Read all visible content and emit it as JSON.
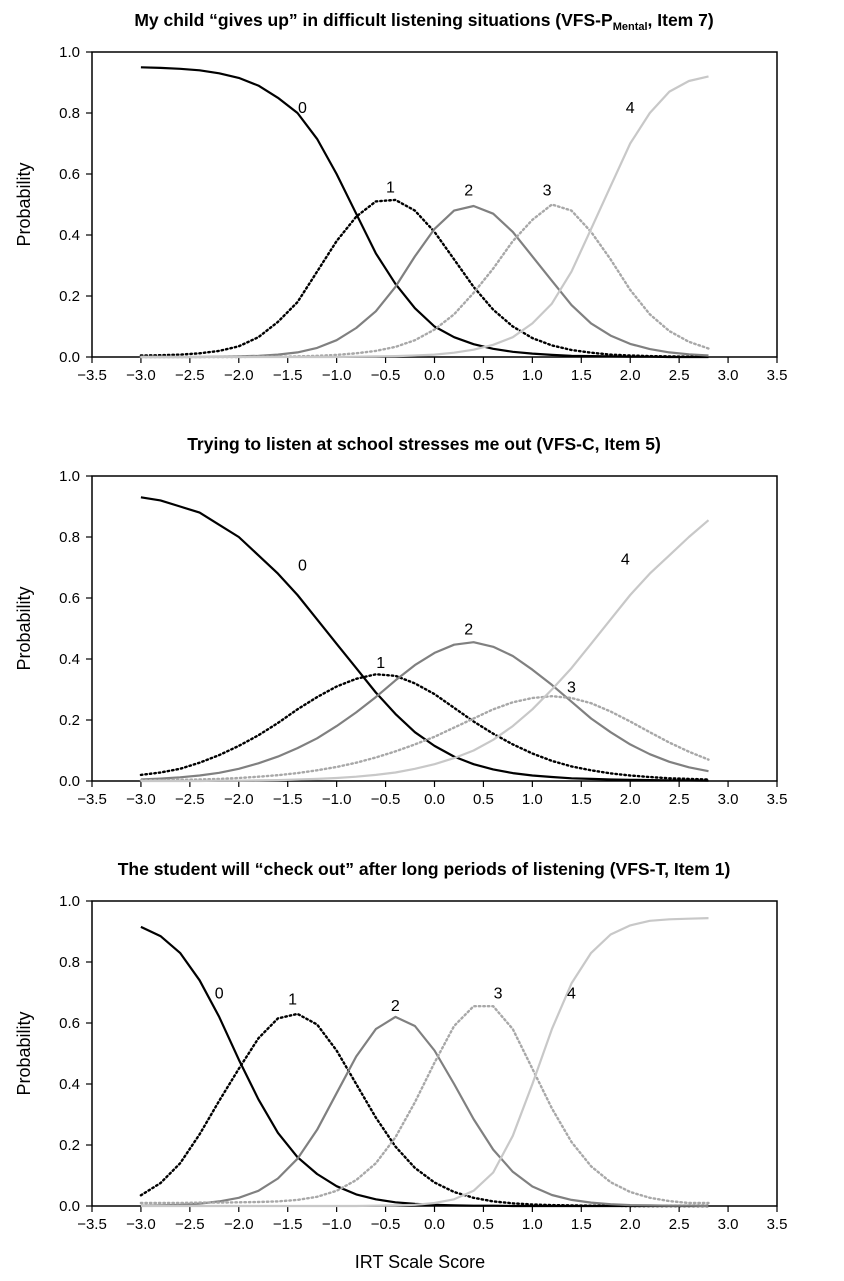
{
  "figure": {
    "xlabel": "IRT Scale Score"
  },
  "chart_data": [
    {
      "type": "line",
      "title_main": "My child “gives up” in difficult listening situations (VFS-P",
      "title_sub": "Mental",
      "title_tail": ", Item 7)",
      "ylabel": "Probability",
      "xlim": [
        -3.5,
        3.5
      ],
      "ylim": [
        0,
        1
      ],
      "x_ticks": [
        "−3.5",
        "−3.0",
        "−2.5",
        "−2.0",
        "−1.5",
        "−1.0",
        "−0.5",
        "0.0",
        "0.5",
        "1.0",
        "1.5",
        "2.0",
        "2.5",
        "3.0",
        "3.5"
      ],
      "y_ticks": [
        "0.0",
        "0.2",
        "0.4",
        "0.6",
        "0.8",
        "1.0"
      ],
      "x": [
        -3.0,
        -2.8,
        -2.6,
        -2.4,
        -2.2,
        -2.0,
        -1.8,
        -1.6,
        -1.4,
        -1.2,
        -1.0,
        -0.8,
        -0.6,
        -0.4,
        -0.2,
        0.0,
        0.2,
        0.4,
        0.6,
        0.8,
        1.0,
        1.2,
        1.4,
        1.6,
        1.8,
        2.0,
        2.2,
        2.4,
        2.6,
        2.8
      ],
      "series": [
        {
          "name": "0",
          "color": "#000000",
          "dash": "solid",
          "label_pos": [
            -1.35,
            0.8
          ],
          "values": [
            0.95,
            0.948,
            0.945,
            0.94,
            0.93,
            0.915,
            0.89,
            0.85,
            0.8,
            0.715,
            0.6,
            0.47,
            0.34,
            0.24,
            0.16,
            0.1,
            0.065,
            0.042,
            0.027,
            0.017,
            0.011,
            0.007,
            0.004,
            0.003,
            0.002,
            0.001,
            0.001,
            0.0,
            0.0,
            0.0
          ]
        },
        {
          "name": "1",
          "color": "#000000",
          "dash": "dot",
          "label_pos": [
            -0.45,
            0.54
          ],
          "values": [
            0.005,
            0.006,
            0.008,
            0.012,
            0.02,
            0.035,
            0.065,
            0.115,
            0.18,
            0.28,
            0.38,
            0.46,
            0.51,
            0.515,
            0.48,
            0.41,
            0.32,
            0.23,
            0.155,
            0.1,
            0.062,
            0.038,
            0.023,
            0.014,
            0.008,
            0.005,
            0.003,
            0.002,
            0.001,
            0.001
          ]
        },
        {
          "name": "2",
          "color": "#808080",
          "dash": "solid",
          "label_pos": [
            0.35,
            0.53
          ],
          "values": [
            0.0,
            0.0,
            0.0,
            0.0,
            0.001,
            0.002,
            0.004,
            0.008,
            0.015,
            0.03,
            0.055,
            0.095,
            0.15,
            0.23,
            0.33,
            0.42,
            0.48,
            0.495,
            0.47,
            0.41,
            0.33,
            0.25,
            0.17,
            0.11,
            0.07,
            0.043,
            0.026,
            0.015,
            0.009,
            0.005
          ]
        },
        {
          "name": "3",
          "color": "#a8a8a8",
          "dash": "dot",
          "label_pos": [
            1.15,
            0.53
          ],
          "values": [
            0.0,
            0.0,
            0.0,
            0.0,
            0.0,
            0.0,
            0.001,
            0.001,
            0.002,
            0.004,
            0.007,
            0.012,
            0.02,
            0.033,
            0.055,
            0.09,
            0.14,
            0.21,
            0.29,
            0.38,
            0.45,
            0.5,
            0.48,
            0.41,
            0.32,
            0.22,
            0.14,
            0.085,
            0.05,
            0.028
          ]
        },
        {
          "name": "4",
          "color": "#c8c8c8",
          "dash": "solid",
          "label_pos": [
            2.0,
            0.8
          ],
          "values": [
            0.0,
            0.0,
            0.0,
            0.0,
            0.0,
            0.0,
            0.0,
            0.0,
            0.0,
            0.0,
            0.0,
            0.001,
            0.002,
            0.003,
            0.005,
            0.008,
            0.014,
            0.024,
            0.04,
            0.065,
            0.11,
            0.175,
            0.28,
            0.42,
            0.56,
            0.7,
            0.8,
            0.87,
            0.905,
            0.92
          ]
        }
      ]
    },
    {
      "type": "line",
      "title_main": "Trying to listen at school stresses me out (VFS-C, Item 5)",
      "title_sub": "",
      "title_tail": "",
      "ylabel": "Probability",
      "xlim": [
        -3.5,
        3.5
      ],
      "ylim": [
        0,
        1
      ],
      "x_ticks": [
        "−3.5",
        "−3.0",
        "−2.5",
        "−2.0",
        "−1.5",
        "−1.0",
        "−0.5",
        "0.0",
        "0.5",
        "1.0",
        "1.5",
        "2.0",
        "2.5",
        "3.0",
        "3.5"
      ],
      "y_ticks": [
        "0.0",
        "0.2",
        "0.4",
        "0.6",
        "0.8",
        "1.0"
      ],
      "x": [
        -3.0,
        -2.8,
        -2.6,
        -2.4,
        -2.2,
        -2.0,
        -1.8,
        -1.6,
        -1.4,
        -1.2,
        -1.0,
        -0.8,
        -0.6,
        -0.4,
        -0.2,
        0.0,
        0.2,
        0.4,
        0.6,
        0.8,
        1.0,
        1.2,
        1.4,
        1.6,
        1.8,
        2.0,
        2.2,
        2.4,
        2.6,
        2.8
      ],
      "series": [
        {
          "name": "0",
          "color": "#000000",
          "dash": "solid",
          "label_pos": [
            -1.35,
            0.69
          ],
          "values": [
            0.93,
            0.92,
            0.9,
            0.88,
            0.84,
            0.8,
            0.74,
            0.68,
            0.61,
            0.53,
            0.45,
            0.37,
            0.29,
            0.22,
            0.16,
            0.115,
            0.08,
            0.055,
            0.038,
            0.026,
            0.018,
            0.013,
            0.009,
            0.007,
            0.005,
            0.004,
            0.003,
            0.002,
            0.002,
            0.001
          ]
        },
        {
          "name": "1",
          "color": "#000000",
          "dash": "dot",
          "label_pos": [
            -0.55,
            0.37
          ],
          "values": [
            0.02,
            0.028,
            0.04,
            0.06,
            0.085,
            0.115,
            0.15,
            0.19,
            0.235,
            0.275,
            0.31,
            0.335,
            0.35,
            0.345,
            0.32,
            0.285,
            0.24,
            0.195,
            0.155,
            0.12,
            0.09,
            0.066,
            0.048,
            0.035,
            0.025,
            0.018,
            0.013,
            0.009,
            0.007,
            0.005
          ]
        },
        {
          "name": "2",
          "color": "#808080",
          "dash": "solid",
          "label_pos": [
            0.35,
            0.48
          ],
          "values": [
            0.005,
            0.008,
            0.012,
            0.018,
            0.027,
            0.04,
            0.058,
            0.08,
            0.108,
            0.14,
            0.18,
            0.225,
            0.275,
            0.33,
            0.38,
            0.42,
            0.447,
            0.455,
            0.44,
            0.41,
            0.365,
            0.315,
            0.26,
            0.205,
            0.16,
            0.12,
            0.088,
            0.063,
            0.045,
            0.032
          ]
        },
        {
          "name": "3",
          "color": "#a8a8a8",
          "dash": "dot",
          "label_pos": [
            1.4,
            0.29
          ],
          "values": [
            0.002,
            0.003,
            0.004,
            0.005,
            0.007,
            0.01,
            0.014,
            0.019,
            0.026,
            0.035,
            0.046,
            0.06,
            0.077,
            0.097,
            0.12,
            0.145,
            0.175,
            0.205,
            0.235,
            0.258,
            0.272,
            0.278,
            0.272,
            0.255,
            0.228,
            0.195,
            0.16,
            0.126,
            0.096,
            0.07
          ]
        },
        {
          "name": "4",
          "color": "#c8c8c8",
          "dash": "solid",
          "label_pos": [
            1.95,
            0.71
          ],
          "values": [
            0.0,
            0.0,
            0.0,
            0.0,
            0.001,
            0.001,
            0.002,
            0.003,
            0.005,
            0.007,
            0.01,
            0.014,
            0.02,
            0.028,
            0.04,
            0.055,
            0.075,
            0.1,
            0.135,
            0.18,
            0.235,
            0.3,
            0.37,
            0.45,
            0.53,
            0.61,
            0.68,
            0.74,
            0.8,
            0.855
          ]
        }
      ]
    },
    {
      "type": "line",
      "title_main": "The student will “check out” after long periods of listening (VFS-T, Item 1)",
      "title_sub": "",
      "title_tail": "",
      "ylabel": "Probability",
      "xlim": [
        -3.5,
        3.5
      ],
      "ylim": [
        0,
        1
      ],
      "x_ticks": [
        "−3.5",
        "−3.0",
        "−2.5",
        "−2.0",
        "−1.5",
        "−1.0",
        "−0.5",
        "0.0",
        "0.5",
        "1.0",
        "1.5",
        "2.0",
        "2.5",
        "3.0",
        "3.5"
      ],
      "y_ticks": [
        "0.0",
        "0.2",
        "0.4",
        "0.6",
        "0.8",
        "1.0"
      ],
      "x": [
        -3.0,
        -2.8,
        -2.6,
        -2.4,
        -2.2,
        -2.0,
        -1.8,
        -1.6,
        -1.4,
        -1.2,
        -1.0,
        -0.8,
        -0.6,
        -0.4,
        -0.2,
        0.0,
        0.2,
        0.4,
        0.6,
        0.8,
        1.0,
        1.2,
        1.4,
        1.6,
        1.8,
        2.0,
        2.2,
        2.4,
        2.6,
        2.8
      ],
      "series": [
        {
          "name": "0",
          "color": "#000000",
          "dash": "solid",
          "label_pos": [
            -2.2,
            0.68
          ],
          "values": [
            0.915,
            0.885,
            0.83,
            0.74,
            0.62,
            0.48,
            0.35,
            0.24,
            0.16,
            0.105,
            0.065,
            0.038,
            0.022,
            0.012,
            0.007,
            0.004,
            0.002,
            0.001,
            0.001,
            0.0,
            0.0,
            0.0,
            0.0,
            0.0,
            0.0,
            0.0,
            0.0,
            0.0,
            0.0,
            0.0
          ]
        },
        {
          "name": "1",
          "color": "#000000",
          "dash": "dot",
          "label_pos": [
            -1.45,
            0.66
          ],
          "values": [
            0.035,
            0.075,
            0.14,
            0.235,
            0.345,
            0.45,
            0.55,
            0.615,
            0.63,
            0.595,
            0.51,
            0.4,
            0.29,
            0.195,
            0.125,
            0.077,
            0.046,
            0.027,
            0.015,
            0.009,
            0.005,
            0.003,
            0.002,
            0.001,
            0.001,
            0.0,
            0.0,
            0.0,
            0.0,
            0.0
          ]
        },
        {
          "name": "2",
          "color": "#808080",
          "dash": "solid",
          "label_pos": [
            -0.4,
            0.64
          ],
          "values": [
            0.001,
            0.002,
            0.004,
            0.008,
            0.015,
            0.027,
            0.05,
            0.09,
            0.155,
            0.25,
            0.37,
            0.49,
            0.58,
            0.62,
            0.59,
            0.51,
            0.4,
            0.285,
            0.185,
            0.112,
            0.064,
            0.036,
            0.02,
            0.011,
            0.006,
            0.003,
            0.002,
            0.001,
            0.001,
            0.0
          ]
        },
        {
          "name": "3",
          "color": "#a8a8a8",
          "dash": "dot",
          "label_pos": [
            0.65,
            0.68
          ],
          "values": [
            0.01,
            0.01,
            0.01,
            0.011,
            0.011,
            0.012,
            0.013,
            0.015,
            0.02,
            0.03,
            0.05,
            0.085,
            0.14,
            0.225,
            0.34,
            0.47,
            0.59,
            0.655,
            0.655,
            0.58,
            0.45,
            0.32,
            0.21,
            0.13,
            0.078,
            0.046,
            0.027,
            0.016,
            0.01,
            0.01
          ]
        },
        {
          "name": "4",
          "color": "#c8c8c8",
          "dash": "solid",
          "label_pos": [
            1.4,
            0.68
          ],
          "values": [
            0.0,
            0.0,
            0.0,
            0.0,
            0.0,
            0.0,
            0.0,
            0.0,
            0.0,
            0.0,
            0.0,
            0.0,
            0.001,
            0.002,
            0.004,
            0.01,
            0.022,
            0.05,
            0.11,
            0.23,
            0.4,
            0.58,
            0.73,
            0.83,
            0.89,
            0.92,
            0.935,
            0.94,
            0.942,
            0.944
          ]
        }
      ]
    }
  ]
}
